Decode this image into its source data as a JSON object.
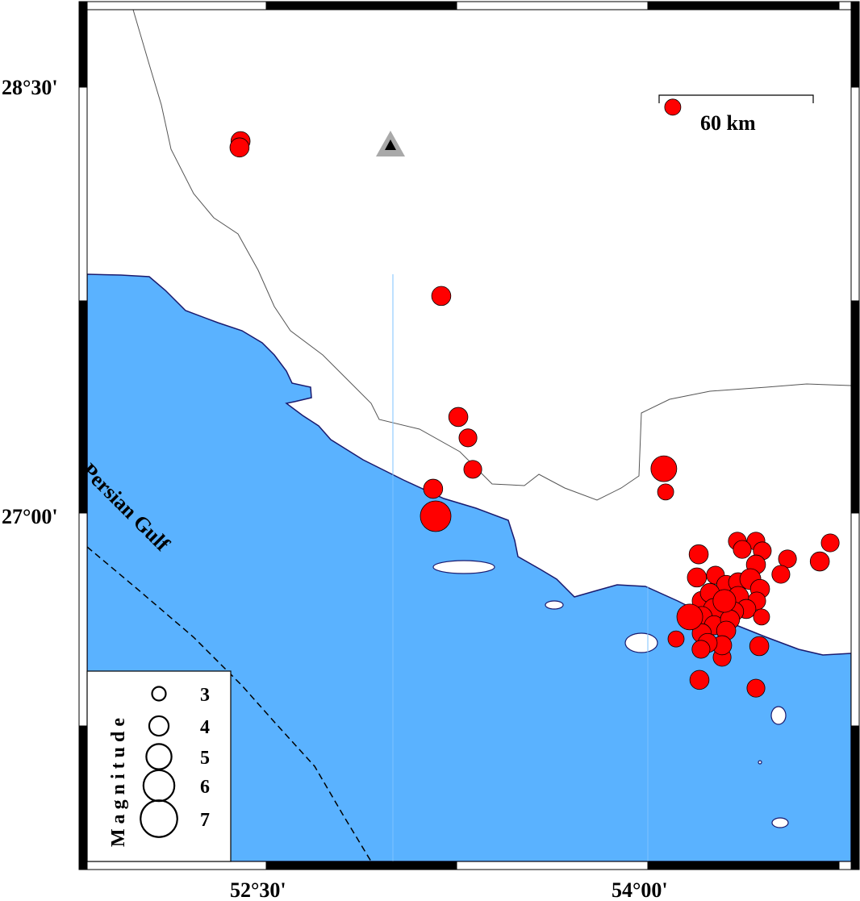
{
  "map": {
    "colors": {
      "sea": "#5ab2ff",
      "land": "#ffffff",
      "coast": "#1a1a6e",
      "quake": "#ff0000",
      "station": "#a9a9a9"
    },
    "lon_ticks": [
      {
        "value": 52.5,
        "label": "52°30'"
      },
      {
        "value": 54.0,
        "label": "54°00'"
      }
    ],
    "lat_ticks": [
      {
        "value": 28.5,
        "label": "28°30'"
      },
      {
        "value": 27.0,
        "label": "27°00'"
      }
    ],
    "sea_label": "Persian Gulf",
    "scale_bar": {
      "label": "60 km"
    },
    "station": {
      "lon": 53.094,
      "lat": 28.295,
      "icon": "triangle-icon"
    },
    "legend": {
      "title": "Magnitude",
      "magnitudes": [
        {
          "value": 3,
          "label": "3"
        },
        {
          "value": 4,
          "label": "4"
        },
        {
          "value": 5,
          "label": "5"
        },
        {
          "value": 6,
          "label": "6"
        },
        {
          "value": 7,
          "label": "7"
        }
      ]
    },
    "earthquakes": [
      {
        "lon": 52.399,
        "lat": 28.311,
        "mag": 3.5
      },
      {
        "lon": 52.395,
        "lat": 28.289,
        "mag": 3.5
      },
      {
        "lon": 53.188,
        "lat": 27.77,
        "mag": 3.5
      },
      {
        "lon": 53.255,
        "lat": 27.347,
        "mag": 3.5
      },
      {
        "lon": 53.293,
        "lat": 27.274,
        "mag": 3.3
      },
      {
        "lon": 53.312,
        "lat": 27.164,
        "mag": 3.3
      },
      {
        "lon": 53.156,
        "lat": 27.096,
        "mag": 3.5
      },
      {
        "lon": 53.166,
        "lat": 27.0,
        "mag": 5.4
      },
      {
        "lon": 54.098,
        "lat": 28.43,
        "mag": 3.0
      },
      {
        "lon": 54.063,
        "lat": 27.166,
        "mag": 4.6
      },
      {
        "lon": 54.07,
        "lat": 27.085,
        "mag": 3.0
      },
      {
        "lon": 54.717,
        "lat": 26.907,
        "mag": 3.3
      },
      {
        "lon": 54.676,
        "lat": 26.842,
        "mag": 3.5
      },
      {
        "lon": 54.352,
        "lat": 26.913,
        "mag": 3.3
      },
      {
        "lon": 54.425,
        "lat": 26.913,
        "mag": 3.3
      },
      {
        "lon": 54.371,
        "lat": 26.884,
        "mag": 3.3
      },
      {
        "lon": 54.45,
        "lat": 26.879,
        "mag": 3.3
      },
      {
        "lon": 54.2,
        "lat": 26.867,
        "mag": 3.5
      },
      {
        "lon": 54.549,
        "lat": 26.851,
        "mag": 3.3
      },
      {
        "lon": 54.425,
        "lat": 26.831,
        "mag": 3.5
      },
      {
        "lon": 54.523,
        "lat": 26.797,
        "mag": 3.3
      },
      {
        "lon": 54.193,
        "lat": 26.786,
        "mag": 3.5
      },
      {
        "lon": 54.266,
        "lat": 26.794,
        "mag": 3.3
      },
      {
        "lon": 54.111,
        "lat": 26.571,
        "mag": 3.0
      },
      {
        "lon": 54.438,
        "lat": 26.546,
        "mag": 3.5
      },
      {
        "lon": 54.203,
        "lat": 26.428,
        "mag": 3.5
      },
      {
        "lon": 54.425,
        "lat": 26.399,
        "mag": 3.3
      },
      {
        "lon": 54.292,
        "lat": 26.507,
        "mag": 3.3
      },
      {
        "lon": 54.308,
        "lat": 26.76,
        "mag": 3.5
      },
      {
        "lon": 54.355,
        "lat": 26.769,
        "mag": 3.5
      },
      {
        "lon": 54.403,
        "lat": 26.78,
        "mag": 3.8
      },
      {
        "lon": 54.441,
        "lat": 26.746,
        "mag": 3.5
      },
      {
        "lon": 54.428,
        "lat": 26.704,
        "mag": 3.3
      },
      {
        "lon": 54.212,
        "lat": 26.704,
        "mag": 3.5
      },
      {
        "lon": 54.244,
        "lat": 26.732,
        "mag": 3.5
      },
      {
        "lon": 54.355,
        "lat": 26.718,
        "mag": 3.8
      },
      {
        "lon": 54.387,
        "lat": 26.676,
        "mag": 3.5
      },
      {
        "lon": 54.339,
        "lat": 26.667,
        "mag": 3.5
      },
      {
        "lon": 54.26,
        "lat": 26.676,
        "mag": 3.8
      },
      {
        "lon": 54.212,
        "lat": 26.648,
        "mag": 3.8
      },
      {
        "lon": 54.26,
        "lat": 26.619,
        "mag": 3.5
      },
      {
        "lon": 54.323,
        "lat": 26.639,
        "mag": 3.5
      },
      {
        "lon": 54.308,
        "lat": 26.6,
        "mag": 3.5
      },
      {
        "lon": 54.212,
        "lat": 26.591,
        "mag": 3.5
      },
      {
        "lon": 54.292,
        "lat": 26.549,
        "mag": 3.5
      },
      {
        "lon": 54.235,
        "lat": 26.557,
        "mag": 3.5
      },
      {
        "lon": 54.447,
        "lat": 26.648,
        "mag": 3.0
      },
      {
        "lon": 54.209,
        "lat": 26.535,
        "mag": 3.3
      },
      {
        "lon": 54.301,
        "lat": 26.704,
        "mag": 4.1
      },
      {
        "lon": 54.165,
        "lat": 26.648,
        "mag": 4.6
      }
    ]
  }
}
